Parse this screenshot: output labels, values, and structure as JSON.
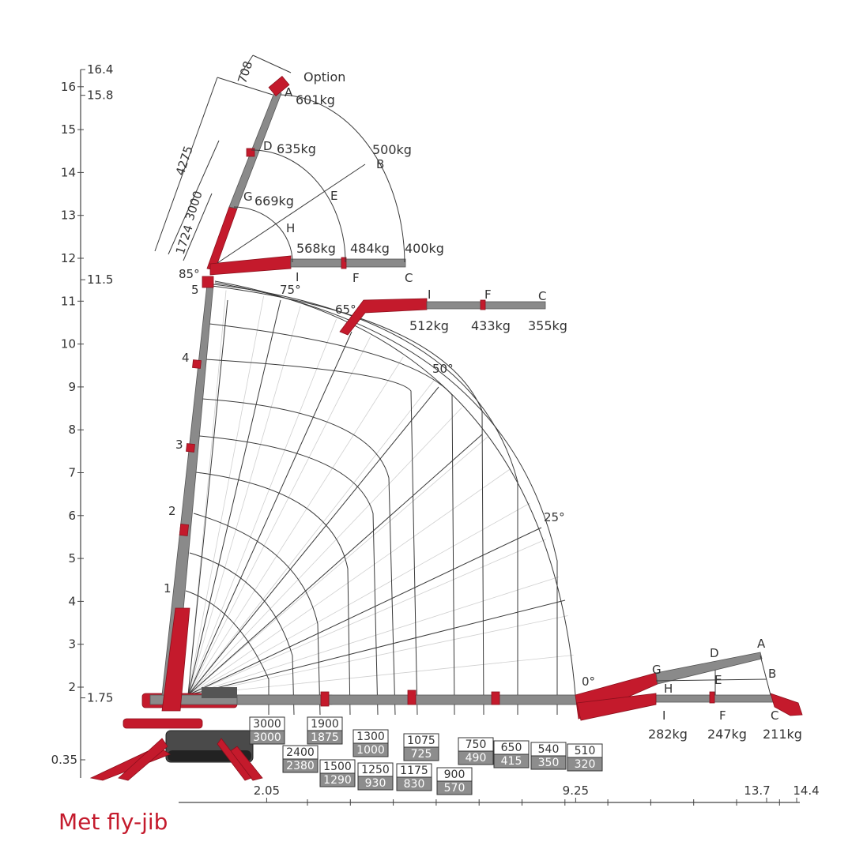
{
  "caption": "Met fly-jib",
  "colors": {
    "boom": "#c41a2c",
    "boom_dark": "#8c0f1c",
    "boom_grey": "#8a8a8a",
    "line": "#3a3a3a",
    "caption": "#c41a2c"
  },
  "y_axis_ticks": [
    "2",
    "3",
    "4",
    "5",
    "6",
    "7",
    "8",
    "9",
    "10",
    "11",
    "12",
    "13",
    "14",
    "15",
    "16"
  ],
  "y_axis_marks": [
    "16.4",
    "15.8",
    "11.5",
    "1.75",
    "0.35"
  ],
  "x_axis_ticks": [
    "3",
    "4",
    "5",
    "6",
    "7",
    "8",
    "9",
    "10",
    "11",
    "12",
    "13",
    "14"
  ],
  "x_axis_marks": [
    "2.05",
    "9.25",
    "13.7",
    "14.4"
  ],
  "boom_sections": [
    "1",
    "2",
    "3",
    "4",
    "5"
  ],
  "angles": [
    "85°",
    "75°",
    "65°",
    "50°",
    "25°",
    "0°"
  ],
  "dimensions": [
    "708",
    "4275",
    "3000",
    "1724"
  ],
  "option_label": "Option",
  "jib_top": {
    "points": [
      "A",
      "D",
      "G",
      "H",
      "E",
      "B",
      "I",
      "F",
      "C"
    ],
    "loads": [
      "601kg",
      "635kg",
      "500kg",
      "669kg",
      "568kg",
      "484kg",
      "400kg"
    ]
  },
  "jib_mid": {
    "points": [
      "I",
      "F",
      "C"
    ],
    "loads": [
      "512kg",
      "433kg",
      "355kg"
    ]
  },
  "jib_low": {
    "points": [
      "A",
      "D",
      "G",
      "E",
      "B",
      "H",
      "I",
      "F",
      "C"
    ],
    "loads": [
      "282kg",
      "247kg",
      "211kg"
    ]
  },
  "capacity_boxes": [
    {
      "white": "3000",
      "grey": "3000"
    },
    {
      "white": "2400",
      "grey": "2380"
    },
    {
      "white": "1900",
      "grey": "1875"
    },
    {
      "white": "1500",
      "grey": "1290"
    },
    {
      "white": "1300",
      "grey": "1000"
    },
    {
      "white": "1250",
      "grey": "930"
    },
    {
      "white": "1075",
      "grey": "725"
    },
    {
      "white": "1175",
      "grey": "830"
    },
    {
      "white": "900",
      "grey": "570"
    },
    {
      "white": "750",
      "grey": "490"
    },
    {
      "white": "650",
      "grey": "415"
    },
    {
      "white": "540",
      "grey": "350"
    },
    {
      "white": "510",
      "grey": "320"
    }
  ]
}
